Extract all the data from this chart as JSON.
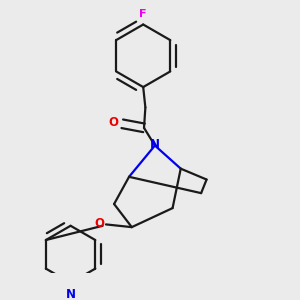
{
  "bg_color": "#ebebeb",
  "bond_color": "#1a1a1a",
  "N_color": "#0000ee",
  "O_color": "#ee0000",
  "F_color": "#ee00ee",
  "line_width": 1.6,
  "fig_size": [
    3.0,
    3.0
  ],
  "dpi": 100,
  "xlim": [
    0.0,
    1.0
  ],
  "ylim": [
    0.0,
    1.0
  ]
}
